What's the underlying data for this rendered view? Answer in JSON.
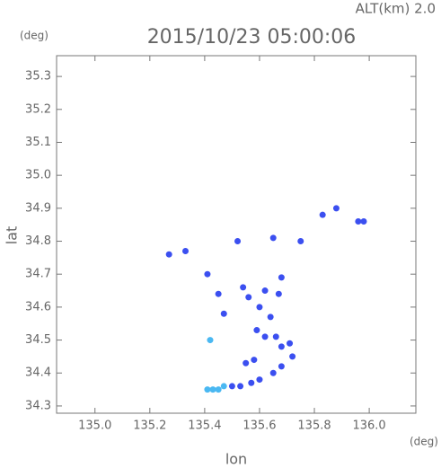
{
  "chart_data": {
    "type": "scatter",
    "title": "2015/10/23 05:00:06",
    "subtitle": "ALT(km)  2.0",
    "x_label": "lon",
    "y_label": "lat",
    "x_unit": "(deg)",
    "y_unit": "(deg)",
    "xlim": [
      134.86,
      136.17
    ],
    "ylim": [
      34.278,
      35.363
    ],
    "xticks": [
      {
        "value": 135.0,
        "label": "135.0"
      },
      135.2,
      135.4,
      135.6,
      135.8,
      {
        "value": 136.0,
        "label": "136.0"
      }
    ],
    "yticks": [
      {
        "value": 34.3,
        "label": "34.3"
      },
      34.4,
      34.5,
      34.6,
      34.7,
      34.8,
      34.9,
      {
        "value": 35.0,
        "label": "35.0"
      },
      35.1,
      35.2,
      35.3
    ],
    "series": [
      {
        "color": "#3b4ff0",
        "x": [
          135.27,
          135.33,
          135.52,
          135.65,
          135.75,
          135.83,
          135.88,
          135.96,
          135.98,
          135.41,
          135.45,
          135.54,
          135.56,
          135.62,
          135.68,
          135.67,
          135.47,
          135.6,
          135.64,
          135.59,
          135.62,
          135.66,
          135.58,
          135.68,
          135.71,
          135.72,
          135.68,
          135.65,
          135.6,
          135.57,
          135.55,
          135.53,
          135.5
        ],
        "values": [
          34.76,
          34.77,
          34.8,
          34.81,
          34.8,
          34.88,
          34.9,
          34.86,
          34.86,
          34.7,
          34.64,
          34.66,
          34.63,
          34.65,
          34.69,
          34.64,
          34.58,
          34.6,
          34.57,
          34.53,
          34.51,
          34.51,
          34.44,
          34.48,
          34.49,
          34.45,
          34.42,
          34.4,
          34.38,
          34.37,
          34.43,
          34.36,
          34.36
        ]
      },
      {
        "color": "#4ab8f2",
        "x": [
          135.42,
          135.41,
          135.43,
          135.45,
          135.47
        ],
        "values": [
          34.5,
          34.35,
          34.35,
          34.35,
          34.36
        ]
      }
    ]
  }
}
